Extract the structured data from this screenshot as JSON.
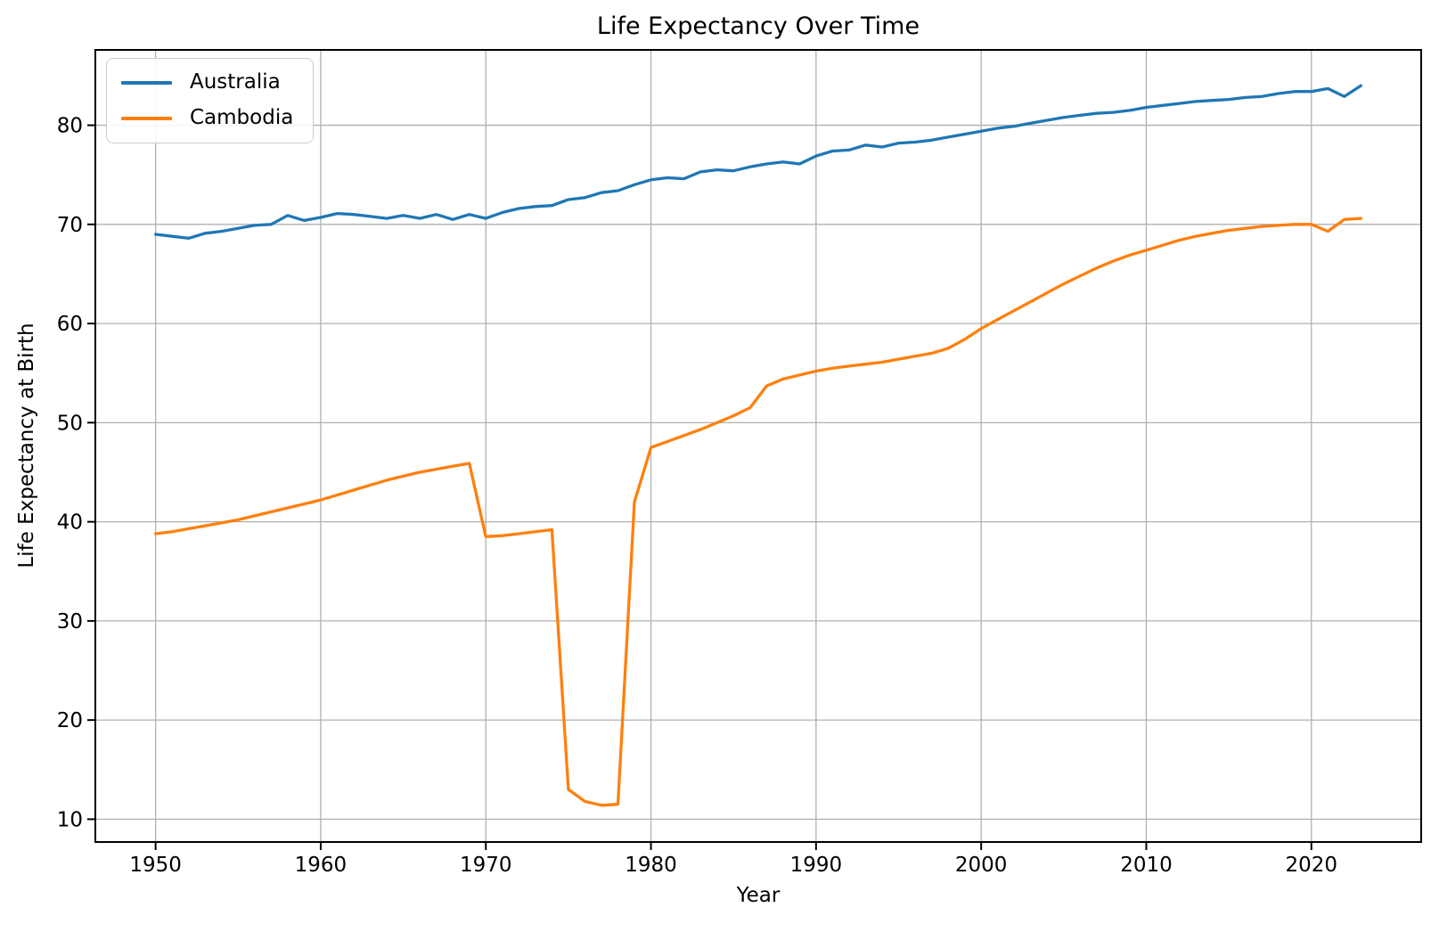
{
  "chart_data": {
    "type": "line",
    "title": "Life Expectancy Over Time",
    "xlabel": "Year",
    "ylabel": "Life Expectancy at Birth",
    "grid": true,
    "grid_color": "#b0b0b0",
    "frame_color": "#000000",
    "background_color": "#ffffff",
    "legend_position": "upper left",
    "xlim": [
      1946.35,
      2026.65
    ],
    "ylim": [
      7.7,
      87.6
    ],
    "xticks": [
      1950,
      1960,
      1970,
      1980,
      1990,
      2000,
      2010,
      2020
    ],
    "yticks": [
      10,
      20,
      30,
      40,
      50,
      60,
      70,
      80
    ],
    "x": [
      1950,
      1951,
      1952,
      1953,
      1954,
      1955,
      1956,
      1957,
      1958,
      1959,
      1960,
      1961,
      1962,
      1963,
      1964,
      1965,
      1966,
      1967,
      1968,
      1969,
      1970,
      1971,
      1972,
      1973,
      1974,
      1975,
      1976,
      1977,
      1978,
      1979,
      1980,
      1981,
      1982,
      1983,
      1984,
      1985,
      1986,
      1987,
      1988,
      1989,
      1990,
      1991,
      1992,
      1993,
      1994,
      1995,
      1996,
      1997,
      1998,
      1999,
      2000,
      2001,
      2002,
      2003,
      2004,
      2005,
      2006,
      2007,
      2008,
      2009,
      2010,
      2011,
      2012,
      2013,
      2014,
      2015,
      2016,
      2017,
      2018,
      2019,
      2020,
      2021,
      2022,
      2023
    ],
    "series": [
      {
        "name": "Australia",
        "color": "#1f77b4",
        "values": [
          69.0,
          68.8,
          68.6,
          69.1,
          69.3,
          69.6,
          69.9,
          70.0,
          70.9,
          70.4,
          70.7,
          71.1,
          71.0,
          70.8,
          70.6,
          70.9,
          70.6,
          71.0,
          70.5,
          71.0,
          70.6,
          71.2,
          71.6,
          71.8,
          71.9,
          72.5,
          72.7,
          73.2,
          73.4,
          74.0,
          74.5,
          74.7,
          74.6,
          75.3,
          75.5,
          75.4,
          75.8,
          76.1,
          76.3,
          76.1,
          76.9,
          77.4,
          77.5,
          78.0,
          77.8,
          78.2,
          78.3,
          78.5,
          78.8,
          79.1,
          79.4,
          79.7,
          79.9,
          80.2,
          80.5,
          80.8,
          81.0,
          81.2,
          81.3,
          81.5,
          81.8,
          82.0,
          82.2,
          82.4,
          82.5,
          82.6,
          82.8,
          82.9,
          83.2,
          83.4,
          83.4,
          83.7,
          82.9,
          84.0
        ]
      },
      {
        "name": "Cambodia",
        "color": "#ff7f0e",
        "values": [
          38.8,
          39.0,
          39.3,
          39.6,
          39.9,
          40.2,
          40.6,
          41.0,
          41.4,
          41.8,
          42.2,
          42.7,
          43.2,
          43.7,
          44.2,
          44.6,
          45.0,
          45.3,
          45.6,
          45.9,
          38.5,
          38.6,
          38.8,
          39.0,
          39.2,
          13.0,
          11.8,
          11.4,
          11.5,
          42.0,
          47.5,
          48.1,
          48.7,
          49.3,
          50.0,
          50.7,
          51.5,
          53.7,
          54.4,
          54.8,
          55.2,
          55.5,
          55.7,
          55.9,
          56.1,
          56.4,
          56.7,
          57.0,
          57.5,
          58.4,
          59.5,
          60.4,
          61.3,
          62.2,
          63.1,
          64.0,
          64.8,
          65.6,
          66.3,
          66.9,
          67.4,
          67.9,
          68.4,
          68.8,
          69.1,
          69.4,
          69.6,
          69.8,
          69.9,
          70.0,
          70.0,
          69.3,
          70.5,
          70.6
        ]
      }
    ]
  }
}
